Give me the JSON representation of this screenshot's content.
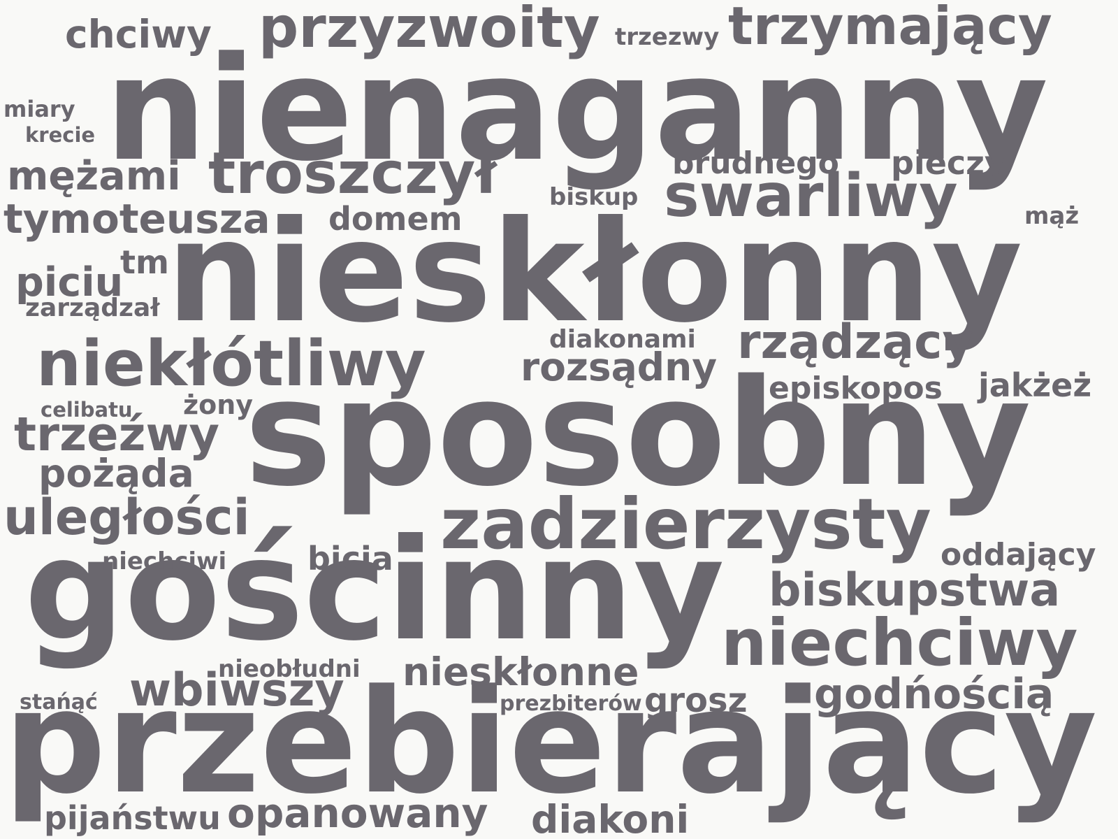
{
  "word_color": "#6a676e",
  "background_color": "#f9f9f7",
  "words": [
    {
      "text": "nienaganny"
    },
    {
      "text": "nieskłonny"
    },
    {
      "text": "sposobny"
    },
    {
      "text": "gościnny"
    },
    {
      "text": "przebierający"
    },
    {
      "text": "trzymający"
    },
    {
      "text": "przyzwoity"
    },
    {
      "text": "chciwy"
    },
    {
      "text": "trzezwy"
    },
    {
      "text": "miary"
    },
    {
      "text": "krecie"
    },
    {
      "text": "mężami"
    },
    {
      "text": "troszczył"
    },
    {
      "text": "brudnego"
    },
    {
      "text": "pieczy"
    },
    {
      "text": "biskup"
    },
    {
      "text": "swarliwy"
    },
    {
      "text": "tymoteusza"
    },
    {
      "text": "domem"
    },
    {
      "text": "mąż"
    },
    {
      "text": "tm"
    },
    {
      "text": "piciu"
    },
    {
      "text": "zarządzał"
    },
    {
      "text": "diakonami"
    },
    {
      "text": "niekłótliwy"
    },
    {
      "text": "rozsądny"
    },
    {
      "text": "rządzący"
    },
    {
      "text": "episkopos"
    },
    {
      "text": "jakżeż"
    },
    {
      "text": "celibatu"
    },
    {
      "text": "żony"
    },
    {
      "text": "trzeźwy"
    },
    {
      "text": "pożąda"
    },
    {
      "text": "uległości"
    },
    {
      "text": "zadzierzysty"
    },
    {
      "text": "oddający"
    },
    {
      "text": "niechciwi"
    },
    {
      "text": "bicia"
    },
    {
      "text": "biskupstwa"
    },
    {
      "text": "niechciwy"
    },
    {
      "text": "nieobłudni"
    },
    {
      "text": "nieskłonne"
    },
    {
      "text": "wbiwszy"
    },
    {
      "text": "godńością"
    },
    {
      "text": "stańąć"
    },
    {
      "text": "prezbiterów"
    },
    {
      "text": "grosz"
    },
    {
      "text": "pijaństwu"
    },
    {
      "text": "opanowany"
    },
    {
      "text": "diakoni"
    }
  ]
}
